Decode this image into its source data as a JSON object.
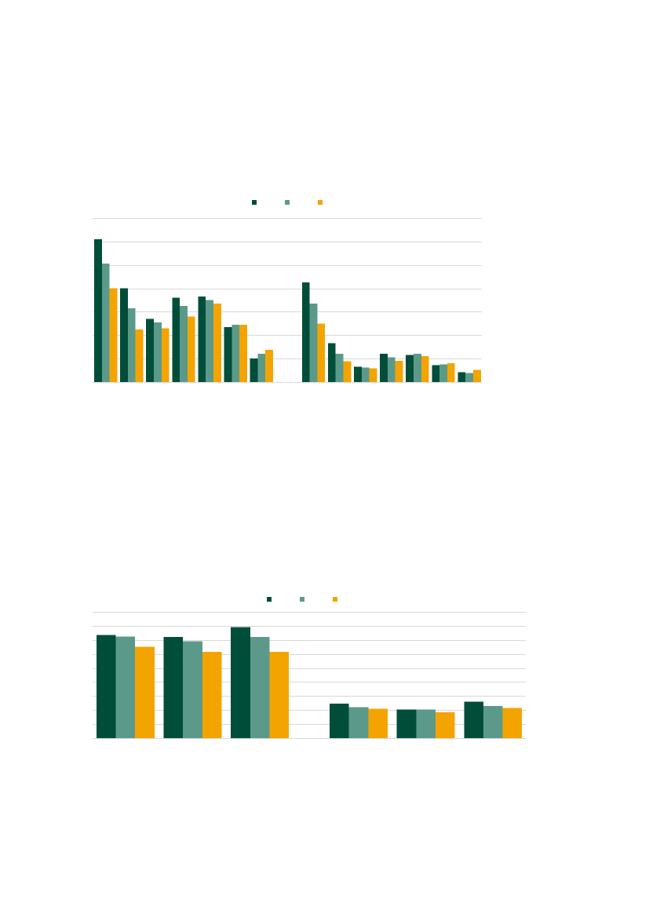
{
  "page": {
    "background": "#ffffff"
  },
  "colors": {
    "series": [
      "#004d3a",
      "#5b9a8b",
      "#f4a400"
    ],
    "grid": "#d9d9d9"
  },
  "chart_data": [
    {
      "type": "bar",
      "title": "",
      "xlabel": "",
      "ylabel": "",
      "legend_position": "top-center",
      "grid": true,
      "ylim": [
        0,
        7
      ],
      "groups": [
        7,
        7
      ],
      "categories": [
        "",
        "",
        "",
        "",
        "",
        "",
        "",
        "",
        "",
        "",
        "",
        "",
        "",
        ""
      ],
      "series": [
        {
          "values": [
            6.1,
            4.0,
            2.7,
            3.6,
            3.65,
            2.35,
            1.0,
            4.25,
            1.65,
            0.65,
            1.2,
            1.15,
            0.72,
            0.42
          ]
        },
        {
          "values": [
            5.05,
            3.15,
            2.55,
            3.25,
            3.5,
            2.45,
            1.2,
            3.35,
            1.2,
            0.62,
            1.05,
            1.2,
            0.75,
            0.38
          ]
        },
        {
          "values": [
            4.0,
            2.25,
            2.3,
            2.8,
            3.35,
            2.45,
            1.38,
            2.5,
            0.88,
            0.58,
            0.9,
            1.1,
            0.8,
            0.52
          ]
        }
      ]
    },
    {
      "type": "bar",
      "title": "",
      "xlabel": "",
      "ylabel": "",
      "legend_position": "top-center",
      "grid": true,
      "ylim": [
        0,
        9
      ],
      "groups": [
        3,
        3
      ],
      "categories": [
        "",
        "",
        "",
        "",
        "",
        ""
      ],
      "series": [
        {
          "values": [
            7.35,
            7.2,
            7.9,
            2.45,
            2.05,
            2.6
          ]
        },
        {
          "values": [
            7.25,
            6.9,
            7.2,
            2.2,
            2.05,
            2.3
          ]
        },
        {
          "values": [
            6.5,
            6.15,
            6.15,
            2.1,
            1.85,
            2.15
          ]
        }
      ]
    }
  ]
}
